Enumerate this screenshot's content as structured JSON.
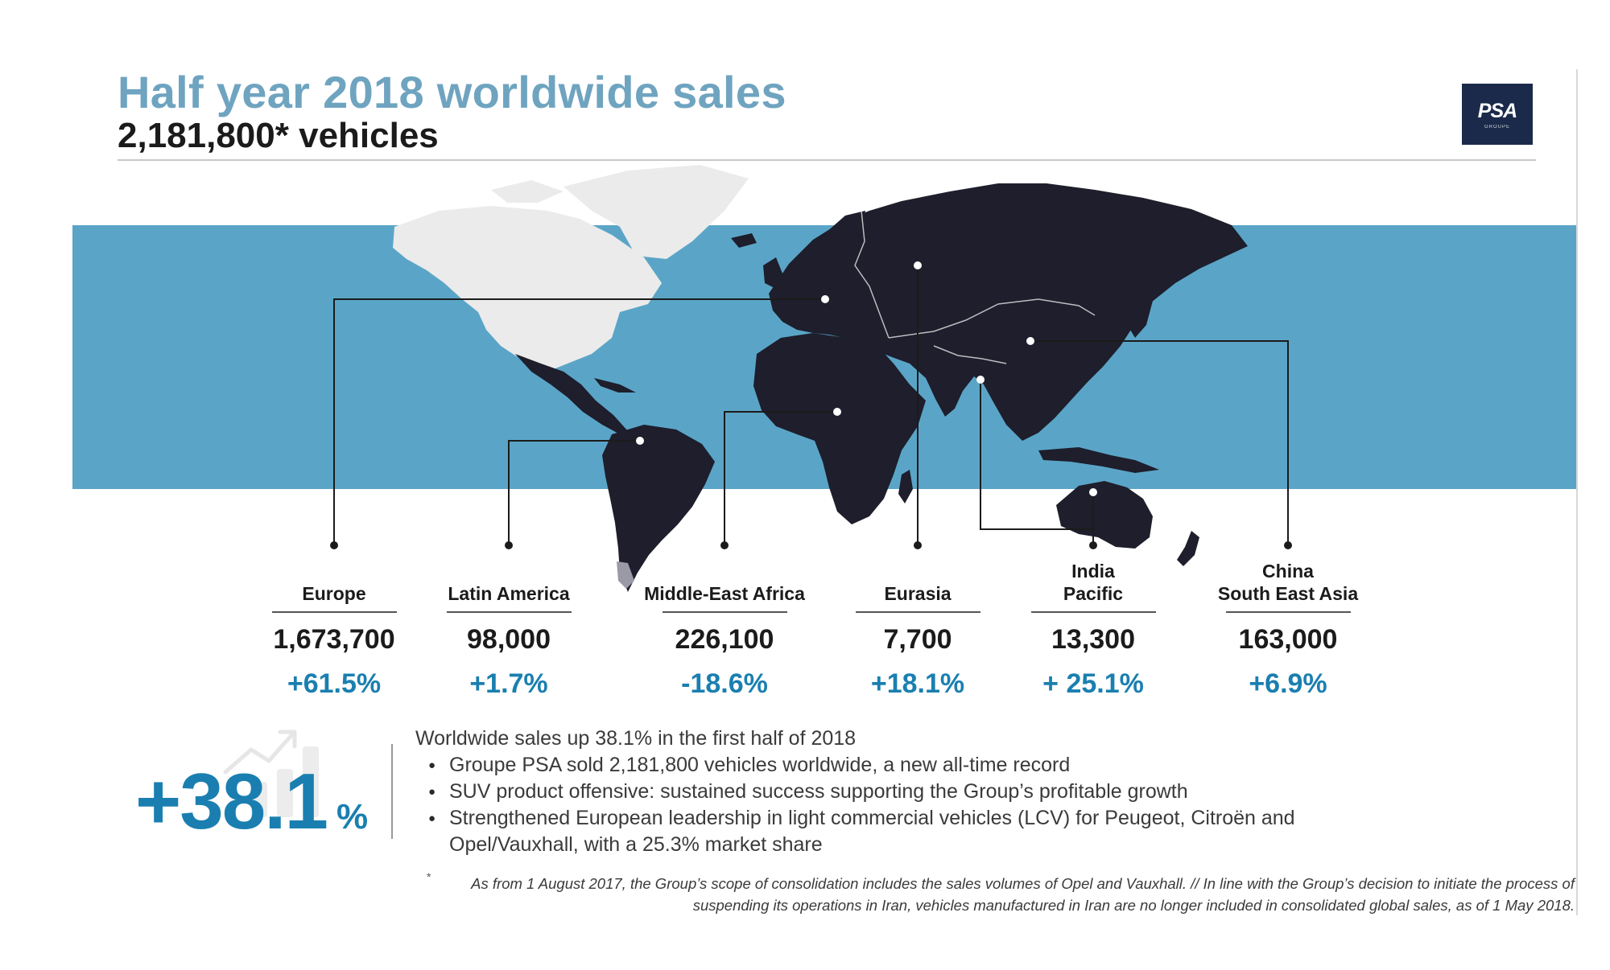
{
  "header": {
    "title": "Half year 2018 worldwide sales",
    "subtitle": "2,181,800* vehicles"
  },
  "logo": {
    "text": "PSA",
    "subtext": "GROUPE"
  },
  "colors": {
    "title": "#6fa4c0",
    "band": "#5aa5c7",
    "land_dark": "#1e1e2c",
    "land_light": "#ebebeb",
    "accent": "#1a7fb0"
  },
  "regions": [
    {
      "name": "Europe",
      "value": "1,673,700",
      "change": "+61.5%"
    },
    {
      "name": "Latin America",
      "value": "98,000",
      "change": "+1.7%"
    },
    {
      "name": "Middle-East Africa",
      "value": "226,100",
      "change": "-18.6%"
    },
    {
      "name": "Eurasia",
      "value": "7,700",
      "change": "+18.1%"
    },
    {
      "name": "India\nPacific",
      "value": "13,300",
      "change": "+ 25.1%"
    },
    {
      "name": "China\nSouth East Asia",
      "value": "163,000",
      "change": "+6.9%"
    }
  ],
  "highlight": {
    "value": "+38.1",
    "unit": "%"
  },
  "summary": {
    "heading": "Worldwide sales up 38.1% in the first half of 2018",
    "bullets": [
      "Groupe PSA sold 2,181,800 vehicles worldwide, a new all-time record",
      "SUV product offensive: sustained success supporting the Group’s profitable growth",
      "Strengthened European leadership in light commercial vehicles (LCV) for Peugeot, Citroën and Opel/Vauxhall, with a 25.3% market share"
    ]
  },
  "footnote": {
    "mark": "*",
    "text": "As from 1 August 2017, the Group’s scope of consolidation includes the sales volumes of Opel and Vauxhall. // In line with the Group’s decision to initiate the process of suspending its operations in Iran, vehicles manufactured in Iran are no longer included in consolidated global sales, as of 1 May 2018."
  }
}
